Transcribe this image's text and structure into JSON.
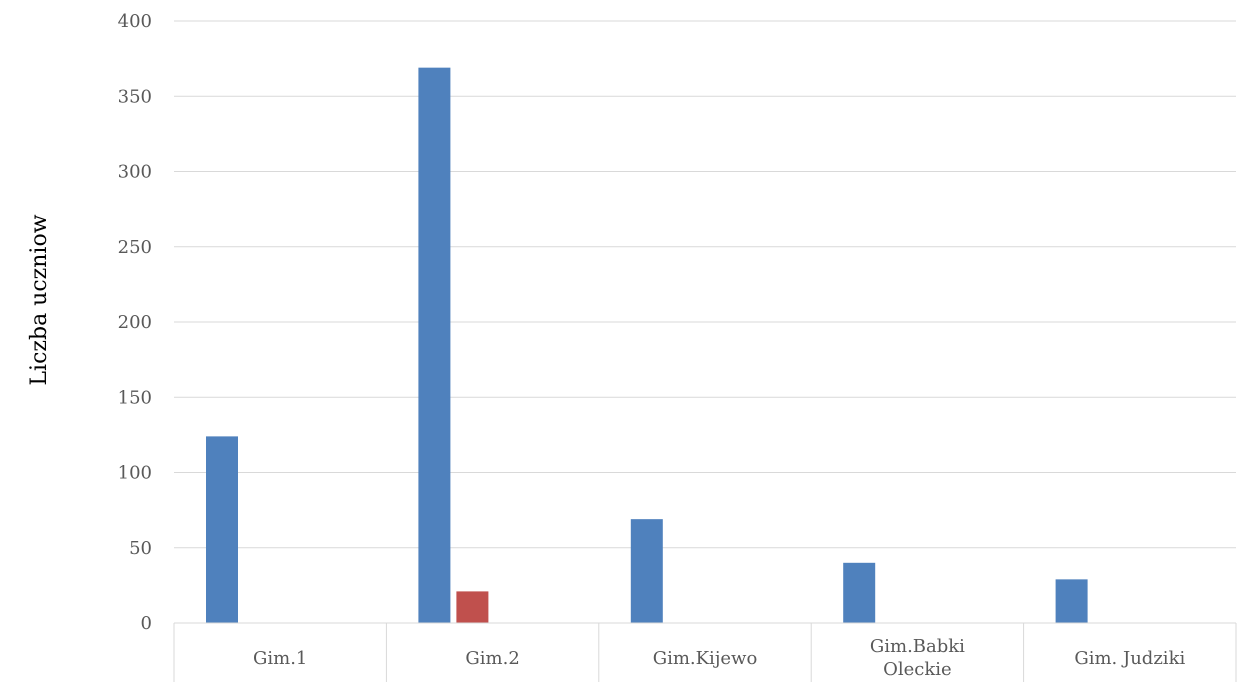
{
  "chart_data": {
    "type": "bar",
    "title": "",
    "xlabel": "",
    "ylabel": "Liczba uczniow",
    "ylim": [
      0,
      400
    ],
    "yticks": [
      0,
      50,
      100,
      150,
      200,
      250,
      300,
      350,
      400
    ],
    "grid": true,
    "legend": "none",
    "categories": [
      [
        "Gim.1"
      ],
      [
        "Gim.2"
      ],
      [
        "Gim.Kijewo"
      ],
      [
        "Gim.Babki",
        "Oleckie"
      ],
      [
        "Gim. Judziki"
      ]
    ],
    "series": [
      {
        "color": "#4f81bd",
        "values": [
          124,
          369,
          69,
          40,
          29
        ]
      },
      {
        "color": "#c0504d",
        "values": [
          0,
          21,
          0,
          0,
          0
        ]
      }
    ]
  }
}
